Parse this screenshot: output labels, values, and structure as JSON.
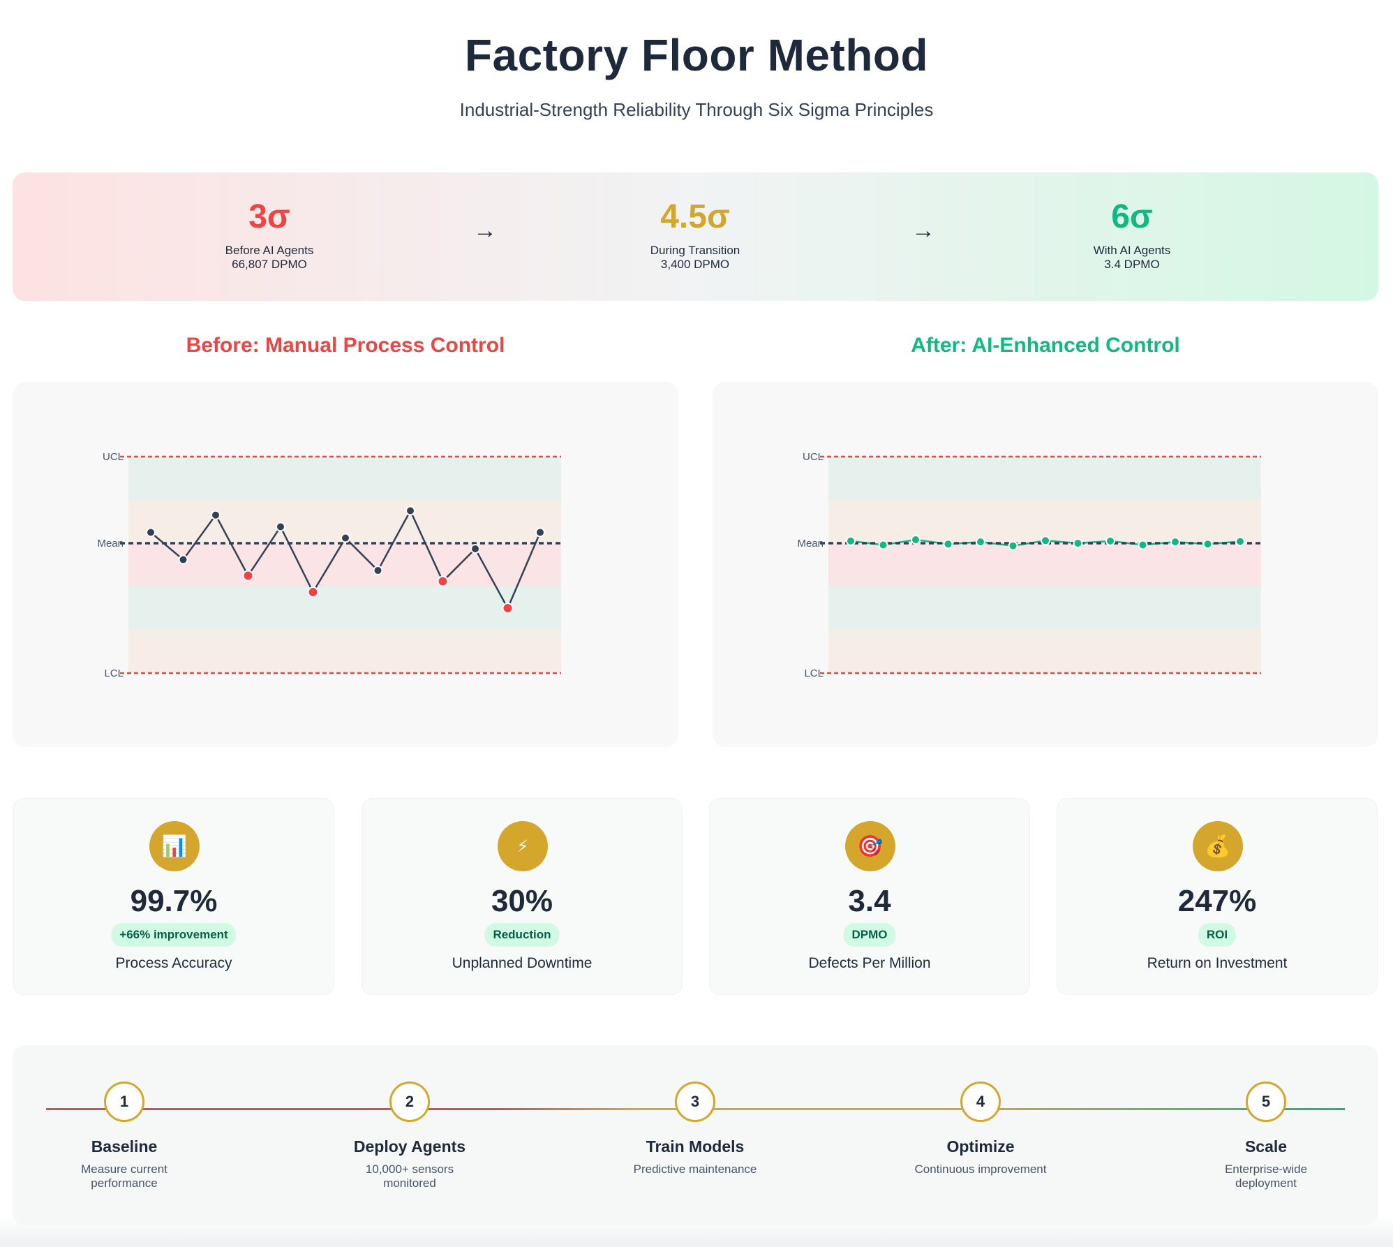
{
  "header": {
    "title": "Factory Floor Method",
    "subtitle": "Industrial-Strength Reliability Through Six Sigma Principles"
  },
  "sigma_stages": [
    {
      "sigma": "3σ",
      "label": "Before AI Agents",
      "dpmo": "66,807 DPMO",
      "color": "#ef4444"
    },
    {
      "sigma": "4.5σ",
      "label": "During Transition",
      "dpmo": "3,400 DPMO",
      "color": "#d4a72c"
    },
    {
      "sigma": "6σ",
      "label": "With AI Agents",
      "dpmo": "3.4 DPMO",
      "color": "#10b981"
    }
  ],
  "stage_arrow": "→",
  "chart_data": [
    {
      "type": "line",
      "title": "Before: Manual Process Control",
      "title_color": "#ef4444",
      "line_color": "#334155",
      "limit_labels": {
        "ucl": "UCL",
        "mean": "Mean",
        "lcl": "LCL"
      },
      "ylim": [
        -3,
        2
      ],
      "x": [
        1,
        2,
        3,
        4,
        5,
        6,
        7,
        8,
        9,
        10,
        11,
        12,
        13
      ],
      "values": [
        0.25,
        -0.38,
        0.65,
        -0.75,
        0.38,
        -1.13,
        0.12,
        -0.63,
        0.75,
        -0.88,
        -0.13,
        -1.5,
        0.25
      ],
      "out_of_control": [
        false,
        false,
        false,
        true,
        false,
        true,
        false,
        false,
        false,
        true,
        false,
        true,
        false
      ]
    },
    {
      "type": "line",
      "title": "After: AI-Enhanced Control",
      "title_color": "#10b981",
      "line_color": "#10b981",
      "limit_labels": {
        "ucl": "UCL",
        "mean": "Mean",
        "lcl": "LCL"
      },
      "ylim": [
        -3,
        2
      ],
      "x": [
        1,
        2,
        3,
        4,
        5,
        6,
        7,
        8,
        9,
        10,
        11,
        12,
        13
      ],
      "values": [
        0.05,
        -0.04,
        0.08,
        -0.02,
        0.03,
        -0.06,
        0.06,
        0.0,
        0.05,
        -0.04,
        0.03,
        -0.02,
        0.04
      ],
      "out_of_control": [
        false,
        false,
        false,
        false,
        false,
        false,
        false,
        false,
        false,
        false,
        false,
        false,
        false
      ]
    }
  ],
  "metrics": [
    {
      "icon": "bar-chart-icon",
      "glyph": "📊",
      "value": "99.7%",
      "badge": "+66% improvement",
      "label": "Process Accuracy"
    },
    {
      "icon": "lightning-icon",
      "glyph": "⚡",
      "value": "30%",
      "badge": "Reduction",
      "label": "Unplanned Downtime"
    },
    {
      "icon": "target-icon",
      "glyph": "🎯",
      "value": "3.4",
      "badge": "DPMO",
      "label": "Defects Per Million"
    },
    {
      "icon": "money-bag-icon",
      "glyph": "💰",
      "value": "247%",
      "badge": "ROI",
      "label": "Return on Investment"
    }
  ],
  "timeline": [
    {
      "num": "1",
      "name": "Baseline",
      "desc": "Measure current performance"
    },
    {
      "num": "2",
      "name": "Deploy Agents",
      "desc": "10,000+ sensors monitored"
    },
    {
      "num": "3",
      "name": "Train Models",
      "desc": "Predictive maintenance"
    },
    {
      "num": "4",
      "name": "Optimize",
      "desc": "Continuous improvement"
    },
    {
      "num": "5",
      "name": "Scale",
      "desc": "Enterprise-wide deployment"
    }
  ]
}
